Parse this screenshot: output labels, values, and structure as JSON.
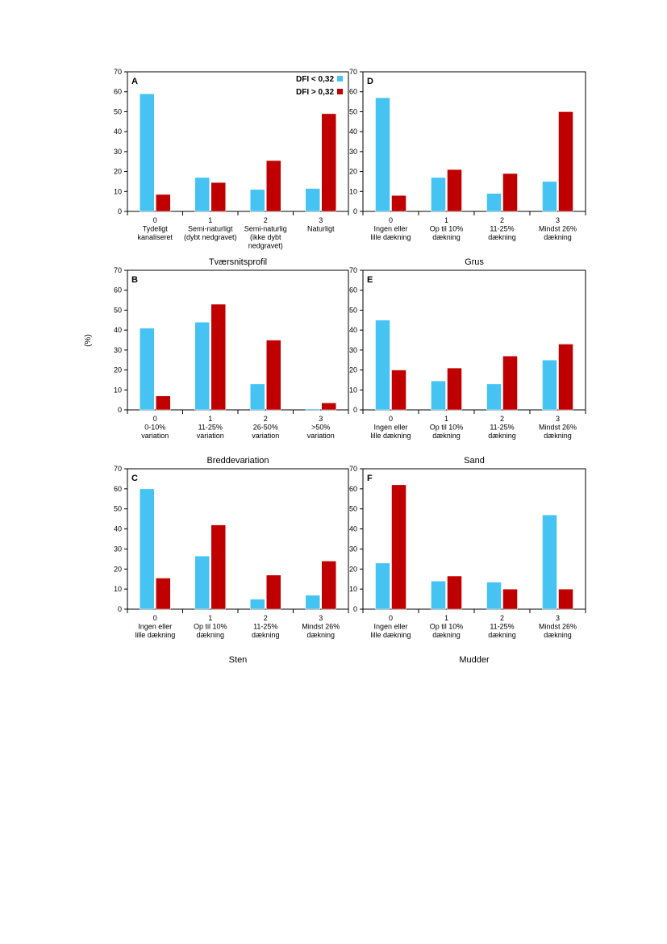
{
  "colors": {
    "series1": "#45c4f4",
    "series2": "#c00000",
    "axis": "#000000"
  },
  "figure": {
    "ylabel": "(%)",
    "legend": {
      "placement": "top-right of panel A"
    }
  },
  "chart_data": [
    {
      "type": "bar",
      "panel": "A",
      "xlabel": "Tværsnitsprofil",
      "ylim": [
        0,
        70
      ],
      "yticks": [
        0,
        10,
        20,
        30,
        40,
        50,
        60,
        70
      ],
      "categories": [
        {
          "code": "0",
          "lines": [
            "Tydeligt",
            "kanaliseret"
          ]
        },
        {
          "code": "1",
          "lines": [
            "Semi-naturligt",
            "(dybt nedgravet)"
          ]
        },
        {
          "code": "2",
          "lines": [
            "Semi-naturlig",
            "(ikke dybt",
            "nedgravet)"
          ]
        },
        {
          "code": "3",
          "lines": [
            "Naturligt"
          ]
        }
      ],
      "series": [
        {
          "name": "DFI < 0,32",
          "values": [
            59,
            17,
            11,
            11.5
          ]
        },
        {
          "name": "DFI > 0,32",
          "values": [
            8.5,
            14.5,
            25.5,
            49
          ]
        }
      ]
    },
    {
      "type": "bar",
      "panel": "B",
      "xlabel": "Breddevariation",
      "ylim": [
        0,
        70
      ],
      "yticks": [
        0,
        10,
        20,
        30,
        40,
        50,
        60,
        70
      ],
      "categories": [
        {
          "code": "0",
          "lines": [
            "0-10%",
            "variation"
          ]
        },
        {
          "code": "1",
          "lines": [
            "11-25%",
            "variation"
          ]
        },
        {
          "code": "2",
          "lines": [
            "26-50%",
            "variation"
          ]
        },
        {
          "code": "3",
          "lines": [
            ">50%",
            "variation"
          ]
        }
      ],
      "series": [
        {
          "name": "DFI < 0,32",
          "values": [
            41,
            44,
            13,
            0.5
          ]
        },
        {
          "name": "DFI > 0,32",
          "values": [
            7,
            53,
            35,
            3.5
          ]
        }
      ]
    },
    {
      "type": "bar",
      "panel": "C",
      "xlabel": "Sten",
      "ylim": [
        0,
        70
      ],
      "yticks": [
        0,
        10,
        20,
        30,
        40,
        50,
        60,
        70
      ],
      "categories": [
        {
          "code": "0",
          "lines": [
            "Ingen eller",
            "lille dækning"
          ]
        },
        {
          "code": "1",
          "lines": [
            "Op til 10%",
            "dækning"
          ]
        },
        {
          "code": "2",
          "lines": [
            "11-25%",
            "dækning"
          ]
        },
        {
          "code": "3",
          "lines": [
            "Mindst 26%",
            "dækning"
          ]
        }
      ],
      "series": [
        {
          "name": "DFI < 0,32",
          "values": [
            60,
            26.5,
            5,
            7
          ]
        },
        {
          "name": "DFI > 0,32",
          "values": [
            15.5,
            42,
            17,
            24
          ]
        }
      ]
    },
    {
      "type": "bar",
      "panel": "D",
      "xlabel": "Grus",
      "ylim": [
        0,
        70
      ],
      "yticks": [
        0,
        10,
        20,
        30,
        40,
        50,
        60,
        70
      ],
      "categories": [
        {
          "code": "0",
          "lines": [
            "Ingen eller",
            "lille dækning"
          ]
        },
        {
          "code": "1",
          "lines": [
            "Op til 10%",
            "dækning"
          ]
        },
        {
          "code": "2",
          "lines": [
            "11-25%",
            "dækning"
          ]
        },
        {
          "code": "3",
          "lines": [
            "Mindst 26%",
            "dækning"
          ]
        }
      ],
      "series": [
        {
          "name": "DFI < 0,32",
          "values": [
            57,
            17,
            9,
            15
          ]
        },
        {
          "name": "DFI > 0,32",
          "values": [
            8,
            21,
            19,
            50
          ]
        }
      ]
    },
    {
      "type": "bar",
      "panel": "E",
      "xlabel": "Sand",
      "ylim": [
        0,
        70
      ],
      "yticks": [
        0,
        10,
        20,
        30,
        40,
        50,
        60,
        70
      ],
      "categories": [
        {
          "code": "0",
          "lines": [
            "Ingen eller",
            "lille dækning"
          ]
        },
        {
          "code": "1",
          "lines": [
            "Op til 10%",
            "dækning"
          ]
        },
        {
          "code": "2",
          "lines": [
            "11-25%",
            "dækning"
          ]
        },
        {
          "code": "3",
          "lines": [
            "Mindst 26%",
            "dækning"
          ]
        }
      ],
      "series": [
        {
          "name": "DFI < 0,32",
          "values": [
            45,
            14.5,
            13,
            25
          ]
        },
        {
          "name": "DFI > 0,32",
          "values": [
            20,
            21,
            27,
            33
          ]
        }
      ]
    },
    {
      "type": "bar",
      "panel": "F",
      "xlabel": "Mudder",
      "ylim": [
        0,
        70
      ],
      "yticks": [
        0,
        10,
        20,
        30,
        40,
        50,
        60,
        70
      ],
      "categories": [
        {
          "code": "0",
          "lines": [
            "Ingen eller",
            "lille dækning"
          ]
        },
        {
          "code": "1",
          "lines": [
            "Op til 10%",
            "dækning"
          ]
        },
        {
          "code": "2",
          "lines": [
            "11-25%",
            "dækning"
          ]
        },
        {
          "code": "3",
          "lines": [
            "Mindst 26%",
            "dækning"
          ]
        }
      ],
      "series": [
        {
          "name": "DFI < 0,32",
          "values": [
            23,
            14,
            13.5,
            47
          ]
        },
        {
          "name": "DFI > 0,32",
          "values": [
            62,
            16.5,
            10,
            10
          ]
        }
      ]
    }
  ]
}
